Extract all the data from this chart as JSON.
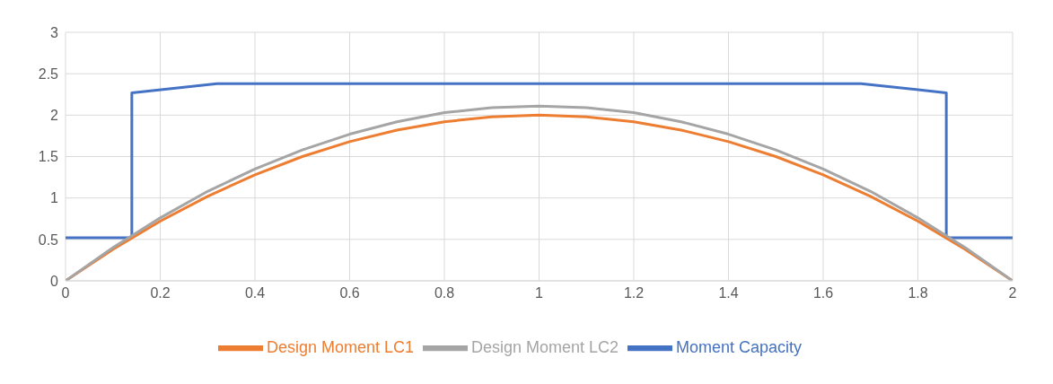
{
  "chart_data": {
    "type": "line",
    "xlim": [
      0,
      2
    ],
    "xticks": [
      0,
      0.2,
      0.4,
      0.6,
      0.8,
      1,
      1.2,
      1.4,
      1.6,
      1.8,
      2
    ],
    "ylim": [
      0,
      3
    ],
    "yticks": [
      0,
      0.5,
      1,
      1.5,
      2,
      2.5,
      3
    ],
    "grid": true,
    "legend": "bottom",
    "marker": "none",
    "line_style": "solid",
    "series": [
      {
        "name": "Moment Capacity",
        "color": "#4472c4",
        "x": [
          0,
          0.14,
          0.14,
          0.32,
          1.68,
          1.86,
          1.86,
          2
        ],
        "values": [
          0.52,
          0.52,
          2.27,
          2.38,
          2.38,
          2.27,
          0.52,
          0.52
        ]
      },
      {
        "name": "Design Moment LC1",
        "color": "#ed7d31",
        "x": [
          0,
          0.1,
          0.2,
          0.3,
          0.4,
          0.5,
          0.6,
          0.7,
          0.8,
          0.9,
          1,
          1.1,
          1.2,
          1.3,
          1.4,
          1.5,
          1.6,
          1.7,
          1.8,
          1.9,
          2
        ],
        "values": [
          0,
          0.38,
          0.72,
          1.02,
          1.28,
          1.5,
          1.68,
          1.82,
          1.92,
          1.98,
          2,
          1.98,
          1.92,
          1.82,
          1.68,
          1.5,
          1.28,
          1.02,
          0.72,
          0.38,
          0
        ]
      },
      {
        "name": "Design Moment LC2",
        "color": "#a5a5a5",
        "x": [
          0,
          0.1,
          0.2,
          0.3,
          0.4,
          0.5,
          0.6,
          0.7,
          0.8,
          0.9,
          1,
          1.1,
          1.2,
          1.3,
          1.4,
          1.5,
          1.6,
          1.7,
          1.8,
          1.9,
          2
        ],
        "values": [
          0,
          0.4,
          0.76,
          1.08,
          1.35,
          1.58,
          1.77,
          1.92,
          2.03,
          2.09,
          2.11,
          2.09,
          2.03,
          1.92,
          1.77,
          1.58,
          1.35,
          1.08,
          0.76,
          0.4,
          0
        ]
      }
    ]
  }
}
